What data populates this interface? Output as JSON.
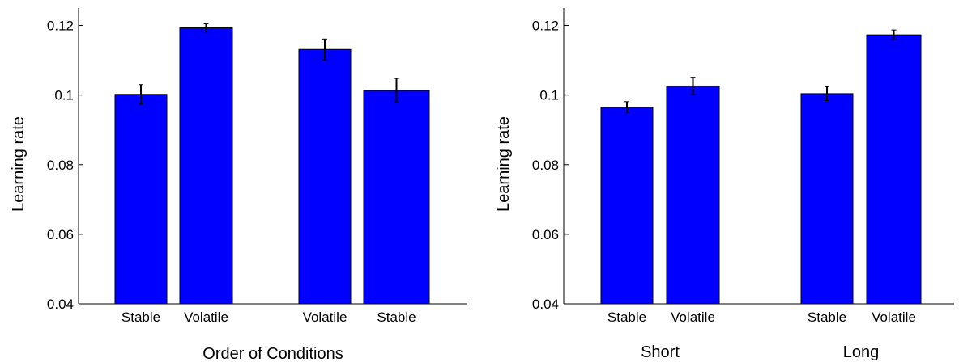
{
  "chart_data": [
    {
      "type": "bar",
      "title": "",
      "xlabel": "Order of Conditions",
      "ylabel": "Learning rate",
      "ylim": [
        0.04,
        0.125
      ],
      "yticks": [
        0.04,
        0.06,
        0.08,
        0.1,
        0.12
      ],
      "ytick_labels": [
        "0.04",
        "0.06",
        "0.08",
        "0.1",
        "0.12"
      ],
      "grid": false,
      "bar_color": "#0000ff",
      "groups": [
        {
          "label": "",
          "bars": [
            {
              "label": "Stable",
              "value": 0.1002,
              "error": 0.0028
            },
            {
              "label": "Volatile",
              "value": 0.1193,
              "error": 0.0012
            }
          ]
        },
        {
          "label": "",
          "bars": [
            {
              "label": "Volatile",
              "value": 0.1131,
              "error": 0.003
            },
            {
              "label": "Stable",
              "value": 0.1013,
              "error": 0.0035
            }
          ]
        }
      ]
    },
    {
      "type": "bar",
      "title": "",
      "xlabel": "",
      "ylabel": "Learning rate",
      "ylim": [
        0.04,
        0.125
      ],
      "yticks": [
        0.04,
        0.06,
        0.08,
        0.1,
        0.12
      ],
      "ytick_labels": [
        "0.04",
        "0.06",
        "0.08",
        "0.1",
        "0.12"
      ],
      "grid": false,
      "bar_color": "#0000ff",
      "groups": [
        {
          "label": "Short",
          "bars": [
            {
              "label": "Stable",
              "value": 0.0965,
              "error": 0.0016
            },
            {
              "label": "Volatile",
              "value": 0.1026,
              "error": 0.0025
            }
          ]
        },
        {
          "label": "Long",
          "bars": [
            {
              "label": "Stable",
              "value": 0.1004,
              "error": 0.002
            },
            {
              "label": "Volatile",
              "value": 0.1173,
              "error": 0.0014
            }
          ]
        }
      ]
    }
  ]
}
